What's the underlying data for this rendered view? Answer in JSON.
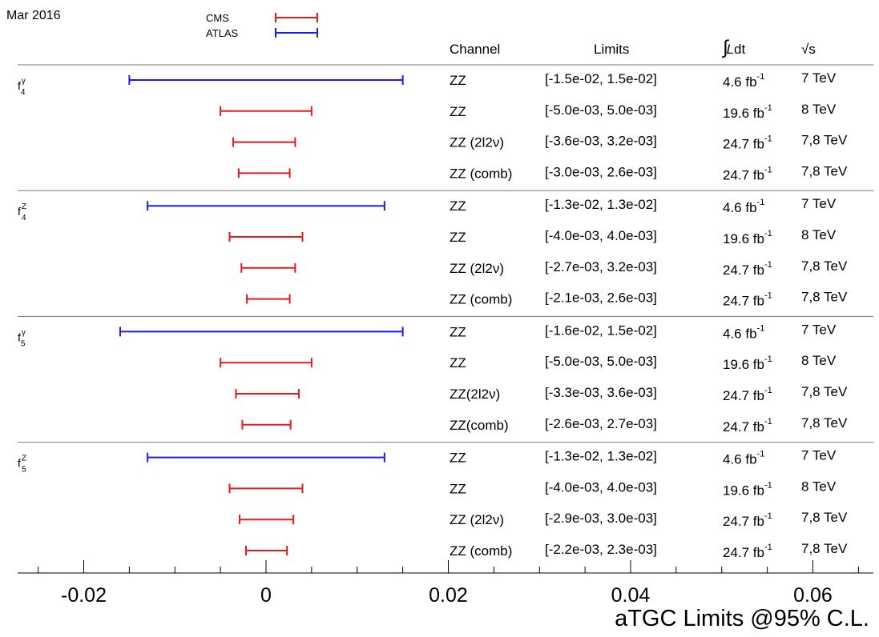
{
  "chart_data": {
    "type": "interval",
    "date_label": "Mar 2016",
    "legend": [
      {
        "name": "CMS",
        "color": "#e41a1c"
      },
      {
        "name": "ATLAS",
        "color": "#1a1aff"
      }
    ],
    "column_headers": {
      "channel": "Channel",
      "limits": "Limits",
      "lumi": "∫Ldt",
      "energy": "√s"
    },
    "xlabel": "aTGC Limits @95% C.L.",
    "xlim": [
      -0.0255,
      0.0655
    ],
    "xticks": [
      "-0.02",
      "0",
      "0.02",
      "0.04",
      "0.06"
    ],
    "xtick_values": [
      -0.02,
      0,
      0.02,
      0.04,
      0.06
    ],
    "groups": [
      {
        "label": "f",
        "sup": "γ",
        "sub": "4",
        "entries": [
          {
            "experiment": "ATLAS",
            "low": -0.015,
            "high": 0.015,
            "channel": "ZZ",
            "limits": "[-1.5e-02, 1.5e-02]",
            "lumi": "4.6 fb",
            "lumi_exp": "-1",
            "energy": "7 TeV"
          },
          {
            "experiment": "CMS",
            "low": -0.005,
            "high": 0.005,
            "channel": "ZZ",
            "limits": "[-5.0e-03, 5.0e-03]",
            "lumi": "19.6 fb",
            "lumi_exp": "-1",
            "energy": "8 TeV"
          },
          {
            "experiment": "CMS",
            "low": -0.0036,
            "high": 0.0032,
            "channel": "ZZ (2l2ν)",
            "limits": "[-3.6e-03, 3.2e-03]",
            "lumi": "24.7 fb",
            "lumi_exp": "-1",
            "energy": "7,8 TeV"
          },
          {
            "experiment": "CMS",
            "low": -0.003,
            "high": 0.0026,
            "channel": "ZZ (comb)",
            "limits": "[-3.0e-03, 2.6e-03]",
            "lumi": "24.7 fb",
            "lumi_exp": "-1",
            "energy": "7,8 TeV"
          }
        ]
      },
      {
        "label": "f",
        "sup": "Z",
        "sub": "4",
        "entries": [
          {
            "experiment": "ATLAS",
            "low": -0.013,
            "high": 0.013,
            "channel": "ZZ",
            "limits": "[-1.3e-02, 1.3e-02]",
            "lumi": "4.6 fb",
            "lumi_exp": "-1",
            "energy": "7 TeV"
          },
          {
            "experiment": "CMS",
            "low": -0.004,
            "high": 0.004,
            "channel": "ZZ",
            "limits": "[-4.0e-03, 4.0e-03]",
            "lumi": "19.6 fb",
            "lumi_exp": "-1",
            "energy": "8 TeV"
          },
          {
            "experiment": "CMS",
            "low": -0.0027,
            "high": 0.0032,
            "channel": "ZZ (2l2ν)",
            "limits": "[-2.7e-03, 3.2e-03]",
            "lumi": "24.7 fb",
            "lumi_exp": "-1",
            "energy": "7,8 TeV"
          },
          {
            "experiment": "CMS",
            "low": -0.0021,
            "high": 0.0026,
            "channel": "ZZ (comb)",
            "limits": "[-2.1e-03, 2.6e-03]",
            "lumi": "24.7 fb",
            "lumi_exp": "-1",
            "energy": "7,8 TeV"
          }
        ]
      },
      {
        "label": "f",
        "sup": "γ",
        "sub": "5",
        "entries": [
          {
            "experiment": "ATLAS",
            "low": -0.016,
            "high": 0.015,
            "channel": "ZZ",
            "limits": "[-1.6e-02, 1.5e-02]",
            "lumi": "4.6 fb",
            "lumi_exp": "-1",
            "energy": "7 TeV"
          },
          {
            "experiment": "CMS",
            "low": -0.005,
            "high": 0.005,
            "channel": "ZZ",
            "limits": "[-5.0e-03, 5.0e-03]",
            "lumi": "19.6 fb",
            "lumi_exp": "-1",
            "energy": "8 TeV"
          },
          {
            "experiment": "CMS",
            "low": -0.0033,
            "high": 0.0036,
            "channel": "ZZ(2l2ν)",
            "limits": "[-3.3e-03, 3.6e-03]",
            "lumi": "24.7 fb",
            "lumi_exp": "-1",
            "energy": "7,8 TeV"
          },
          {
            "experiment": "CMS",
            "low": -0.0026,
            "high": 0.0027,
            "channel": "ZZ(comb)",
            "limits": "[-2.6e-03, 2.7e-03]",
            "lumi": "24.7 fb",
            "lumi_exp": "-1",
            "energy": "7,8 TeV"
          }
        ]
      },
      {
        "label": "f",
        "sup": "Z",
        "sub": "5",
        "entries": [
          {
            "experiment": "ATLAS",
            "low": -0.013,
            "high": 0.013,
            "channel": "ZZ",
            "limits": "[-1.3e-02, 1.3e-02]",
            "lumi": "4.6 fb",
            "lumi_exp": "-1",
            "energy": "7 TeV"
          },
          {
            "experiment": "CMS",
            "low": -0.004,
            "high": 0.004,
            "channel": "ZZ",
            "limits": "[-4.0e-03, 4.0e-03]",
            "lumi": "19.6 fb",
            "lumi_exp": "-1",
            "energy": "8 TeV"
          },
          {
            "experiment": "CMS",
            "low": -0.0029,
            "high": 0.003,
            "channel": "ZZ (2l2ν)",
            "limits": "[-2.9e-03, 3.0e-03]",
            "lumi": "24.7 fb",
            "lumi_exp": "-1",
            "energy": "7,8 TeV"
          },
          {
            "experiment": "CMS",
            "low": -0.0022,
            "high": 0.0023,
            "channel": "ZZ (comb)",
            "limits": "[-2.2e-03, 2.3e-03]",
            "lumi": "24.7 fb",
            "lumi_exp": "-1",
            "energy": "7,8 TeV"
          }
        ]
      }
    ]
  }
}
